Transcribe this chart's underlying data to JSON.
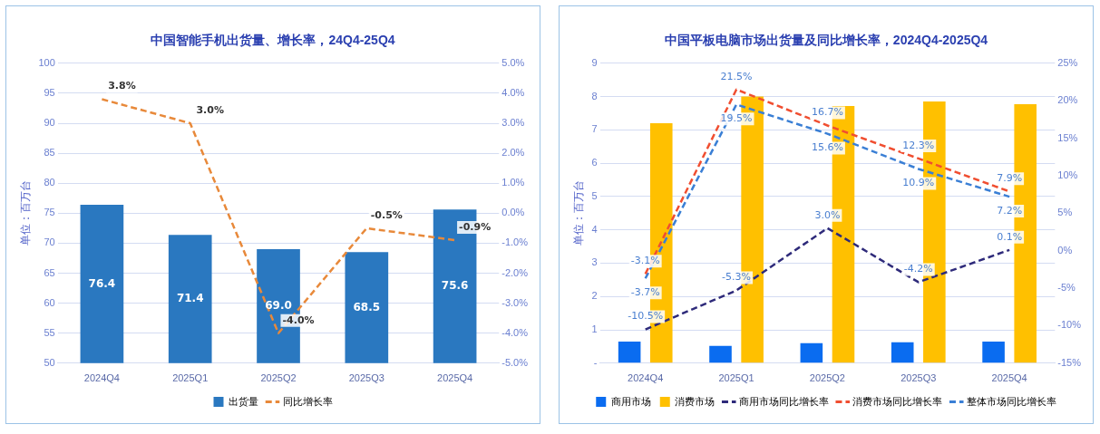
{
  "chart_data": [
    {
      "type": "bar",
      "title": "中国智能手机出货量、增长率，24Q4-25Q4",
      "ylabel": "单位：百万台",
      "categories": [
        "2024Q4",
        "2025Q1",
        "2025Q2",
        "2025Q3",
        "2025Q4"
      ],
      "series": [
        {
          "name": "出货量",
          "type": "bar",
          "color": "#2a78c0",
          "values": [
            76.4,
            71.4,
            69.0,
            68.5,
            75.6
          ],
          "value_labels": [
            "76.4",
            "71.4",
            "69.0",
            "68.5",
            "75.6"
          ]
        },
        {
          "name": "同比增长率",
          "type": "line",
          "axis": "y2",
          "color": "#e8893a",
          "line_style": "dashed",
          "values": [
            3.8,
            3.0,
            -4.0,
            -0.5,
            -0.9
          ],
          "value_labels": [
            "3.8%",
            "3.0%",
            "-4.0%",
            "-0.5%",
            "-0.9%"
          ]
        }
      ],
      "ylim": [
        50,
        100
      ],
      "yticks": [
        50,
        55,
        60,
        65,
        70,
        75,
        80,
        85,
        90,
        95,
        100
      ],
      "y2lim": [
        -5,
        5
      ],
      "y2ticks": [
        {
          "value": -5,
          "label": "-5.0%"
        },
        {
          "value": -4,
          "label": "-4.0%"
        },
        {
          "value": -3,
          "label": "-3.0%"
        },
        {
          "value": -2,
          "label": "-2.0%"
        },
        {
          "value": -1,
          "label": "-1.0%"
        },
        {
          "value": 0,
          "label": "0.0%"
        },
        {
          "value": 1,
          "label": "1.0%"
        },
        {
          "value": 2,
          "label": "2.0%"
        },
        {
          "value": 3,
          "label": "3.0%"
        },
        {
          "value": 4,
          "label": "4.0%"
        },
        {
          "value": 5,
          "label": "5.0%"
        }
      ],
      "grid": "y",
      "legend": "bottom",
      "marker": "none"
    },
    {
      "type": "bar",
      "title": "中国平板电脑市场出货量及同比增长率，2024Q4-2025Q4",
      "ylabel": "单位：百万台",
      "categories": [
        "2024Q4",
        "2025Q1",
        "2025Q2",
        "2025Q3",
        "2025Q4"
      ],
      "series": [
        {
          "name": "商用市场",
          "type": "bar",
          "color": "#0a6cf0",
          "values": [
            0.65,
            0.52,
            0.6,
            0.63,
            0.65
          ]
        },
        {
          "name": "消费市场",
          "type": "bar",
          "color": "#ffc000",
          "values": [
            7.2,
            8.0,
            7.72,
            7.85,
            7.77
          ]
        },
        {
          "name": "商用市场同比增长率",
          "type": "line",
          "axis": "y2",
          "color": "#2e2a7a",
          "line_style": "dashed",
          "values": [
            -10.5,
            -5.3,
            3.0,
            -4.2,
            0.1
          ],
          "value_labels": [
            "-10.5%",
            "-5.3%",
            "3.0%",
            "-4.2%",
            "0.1%"
          ]
        },
        {
          "name": "消费市场同比增长率",
          "type": "line",
          "axis": "y2",
          "color": "#f04e30",
          "line_style": "dashed",
          "values": [
            -3.1,
            21.5,
            16.7,
            12.3,
            7.9
          ],
          "value_labels": [
            "-3.1%",
            "21.5%",
            "16.7%",
            "12.3%",
            "7.9%"
          ]
        },
        {
          "name": "整体市场同比增长率",
          "type": "line",
          "axis": "y2",
          "color": "#3a7fd5",
          "line_style": "dashed",
          "values": [
            -3.7,
            19.5,
            15.6,
            10.9,
            7.2
          ],
          "value_labels": [
            "-3.7%",
            "19.5%",
            "15.6%",
            "10.9%",
            "7.2%"
          ]
        }
      ],
      "ylim": [
        0,
        9
      ],
      "yticks": [
        {
          "value": 0,
          "label": "-"
        },
        1,
        2,
        3,
        4,
        5,
        6,
        7,
        8,
        9
      ],
      "y2lim": [
        -15,
        25
      ],
      "y2ticks": [
        {
          "value": -15,
          "label": "-15%"
        },
        {
          "value": -10,
          "label": "-10%"
        },
        {
          "value": -5,
          "label": "-5%"
        },
        {
          "value": 0,
          "label": "0%"
        },
        {
          "value": 5,
          "label": "5%"
        },
        {
          "value": 10,
          "label": "10%"
        },
        {
          "value": 15,
          "label": "15%"
        },
        {
          "value": 20,
          "label": "20%"
        },
        {
          "value": 25,
          "label": "25%"
        }
      ],
      "grid": "y",
      "legend": "bottom",
      "marker": "none"
    }
  ]
}
